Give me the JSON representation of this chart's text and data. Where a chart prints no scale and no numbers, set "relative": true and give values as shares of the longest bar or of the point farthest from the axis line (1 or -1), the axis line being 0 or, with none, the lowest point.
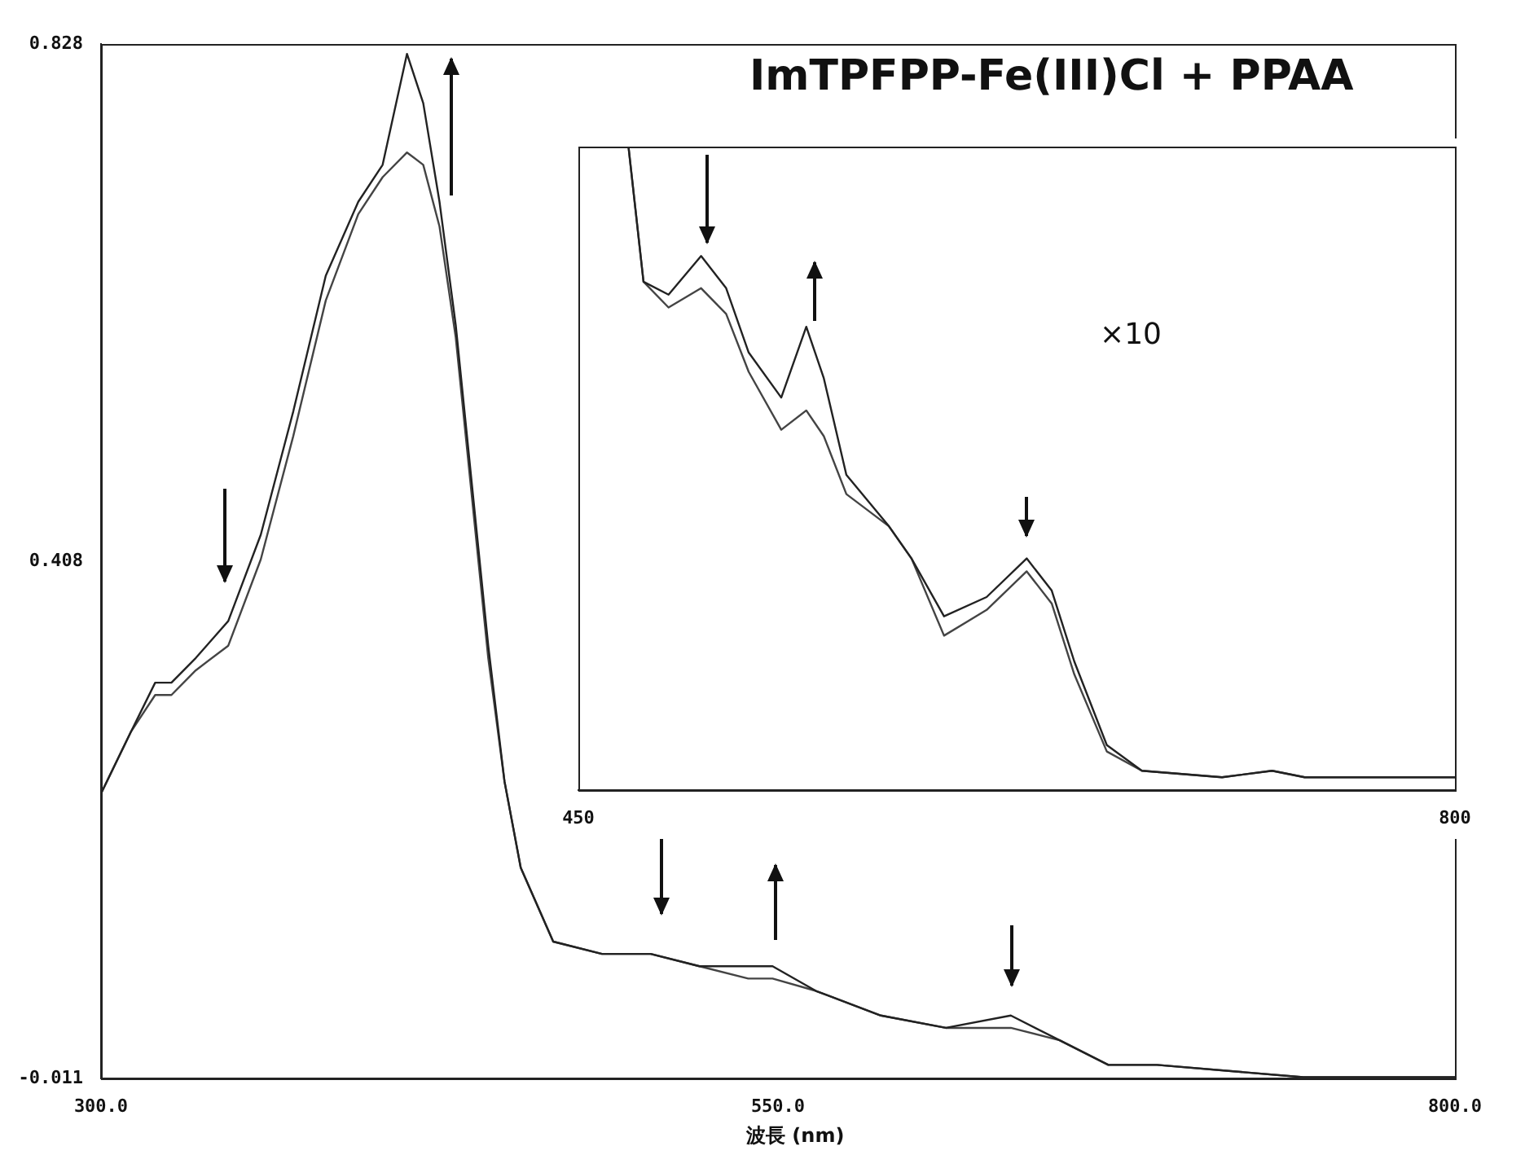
{
  "chart_data": [
    {
      "type": "line",
      "xlabel": "波長 (nm)",
      "annotations": [
        "ImTPFPP-Fe(III)Cl + PPAA"
      ],
      "x": [
        300,
        311,
        320,
        326,
        335,
        347,
        359,
        371,
        383,
        395,
        404,
        413,
        419,
        425,
        431,
        437,
        443,
        449,
        455,
        467,
        485,
        503,
        521,
        539,
        548,
        564,
        588,
        612,
        636,
        654,
        672,
        690,
        744,
        800
      ],
      "series": [
        {
          "color": "#222222",
          "values": [
            0.22,
            0.27,
            0.31,
            0.31,
            0.33,
            0.36,
            0.43,
            0.53,
            0.64,
            0.7,
            0.73,
            0.82,
            0.78,
            0.7,
            0.6,
            0.47,
            0.34,
            0.23,
            0.16,
            0.1,
            0.09,
            0.09,
            0.08,
            0.08,
            0.08,
            0.06,
            0.04,
            0.03,
            0.04,
            0.02,
            0.0,
            0.0,
            -0.01,
            -0.01
          ]
        },
        {
          "color": "#444444",
          "values": [
            0.22,
            0.27,
            0.3,
            0.3,
            0.32,
            0.34,
            0.41,
            0.51,
            0.62,
            0.69,
            0.72,
            0.74,
            0.73,
            0.68,
            0.59,
            0.46,
            0.33,
            0.23,
            0.16,
            0.1,
            0.09,
            0.09,
            0.08,
            0.07,
            0.07,
            0.06,
            0.04,
            0.03,
            0.03,
            0.02,
            0.0,
            0.0,
            -0.01,
            -0.01
          ]
        }
      ],
      "xlim": [
        300,
        800
      ],
      "xticks": [
        {
          "value": 300,
          "label": "300.0"
        },
        {
          "value": 550,
          "label": "550.0"
        },
        {
          "value": 800,
          "label": "800.0"
        }
      ],
      "ylim": [
        -0.011,
        0.828
      ],
      "yticks": [
        -0.011,
        0.408,
        0.828
      ],
      "grid": false,
      "legend": false,
      "marker": "none"
    },
    {
      "type": "line",
      "relative": true,
      "annotations": [
        "×10"
      ],
      "x": [
        470,
        476,
        486,
        499,
        509,
        518,
        531,
        541,
        548,
        557,
        574,
        583,
        596,
        613,
        629,
        639,
        648,
        661,
        675,
        707,
        727,
        740,
        772,
        800
      ],
      "series": [
        {
          "color": "#222222",
          "values": [
            1.0,
            0.79,
            0.77,
            0.83,
            0.78,
            0.68,
            0.61,
            0.72,
            0.64,
            0.49,
            0.41,
            0.36,
            0.27,
            0.3,
            0.36,
            0.31,
            0.2,
            0.07,
            0.03,
            0.02,
            0.03,
            0.02,
            0.02,
            0.02
          ]
        },
        {
          "color": "#444444",
          "values": [
            1.0,
            0.79,
            0.75,
            0.78,
            0.74,
            0.65,
            0.56,
            0.59,
            0.55,
            0.46,
            0.41,
            0.36,
            0.24,
            0.28,
            0.34,
            0.29,
            0.18,
            0.06,
            0.03,
            0.02,
            0.03,
            0.02,
            0.02,
            0.02
          ]
        }
      ],
      "xlim": [
        450,
        800
      ],
      "xticks": [
        450,
        800
      ],
      "grid": false,
      "legend": false,
      "marker": "none"
    }
  ]
}
